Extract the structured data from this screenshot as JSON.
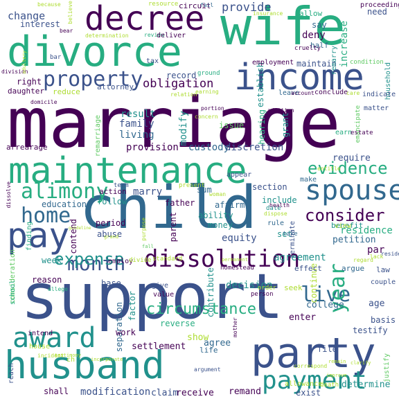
{
  "palette": {
    "dark_purple": "#440154",
    "indigo": "#3b528b",
    "blue_slate": "#31688e",
    "teal": "#21918c",
    "sea_green": "#27ad81",
    "green": "#5ec962",
    "lime": "#addc30",
    "yellow": "#fde725"
  },
  "words": [
    "marriage",
    "support",
    "child",
    "wife",
    "divorce",
    "income",
    "decree",
    "maintenance",
    "party",
    "husband",
    "spouse",
    "pay",
    "award",
    "dissolution",
    "alimony",
    "property",
    "payment",
    "home",
    "month",
    "live",
    "expense",
    "circumstance",
    "evidence",
    "consider",
    "provide",
    "obligation",
    "change",
    "interest",
    "right",
    "attorney",
    "reduce",
    "daughter",
    "result",
    "family",
    "living",
    "provision",
    "modify",
    "custody",
    "discretion",
    "record",
    "issue",
    "establish",
    "hearing",
    "grant",
    "remarriage",
    "arrearage",
    "education",
    "follow",
    "father",
    "marry",
    "affirm",
    "ability",
    "money",
    "equity",
    "sum",
    "section",
    "include",
    "rule",
    "set",
    "take",
    "benefit",
    "petition",
    "residence",
    "year",
    "argue",
    "law",
    "par",
    "period",
    "abuse",
    "contend",
    "finding",
    "week",
    "reason",
    "consideration",
    "base",
    "separation",
    "factor",
    "contribute",
    "decision",
    "agreement",
    "continue",
    "seek",
    "effect",
    "college",
    "enter",
    "age",
    "basis",
    "couple",
    "testify",
    "determine",
    "file",
    "death",
    "settlement",
    "agree",
    "show",
    "reverse",
    "work",
    "life",
    "claim",
    "receive",
    "remand",
    "modification",
    "shall",
    "reach",
    "house",
    "intend",
    "school",
    "exist",
    "allowance",
    "justify",
    "need",
    "say",
    "increase",
    "deny",
    "half",
    "allow",
    "cruelty",
    "proceeding",
    "insurance",
    "because",
    "believe",
    "bear",
    "circuit",
    "resource",
    "fail",
    "determination",
    "review",
    "deliver",
    "tax",
    "ground",
    "employment",
    "maintain",
    "remarry",
    "condition",
    "household",
    "division",
    "bar",
    "adultery",
    "relation",
    "earning",
    "leave",
    "account",
    "conclude",
    "care",
    "indicate",
    "domicile",
    "portion",
    "addition",
    "concern",
    "emancipate",
    "matter",
    "earn",
    "estate",
    "require",
    "entitle",
    "make",
    "appear",
    "present",
    "dissolve",
    "action",
    "term",
    "woman",
    "date",
    "dispose",
    "guideline",
    "purpose",
    "parent",
    "view",
    "terminate",
    "employ",
    "divide",
    "standard",
    "homestead",
    "person",
    "mother",
    "give",
    "value",
    "regard",
    "reside",
    "lack",
    "testimony",
    "incident",
    "incorporate",
    "argument",
    "health",
    "remain",
    "clarify",
    "improve",
    "ch",
    "allege",
    "permanent",
    "order",
    "fall",
    "grand",
    "correspond"
  ]
}
